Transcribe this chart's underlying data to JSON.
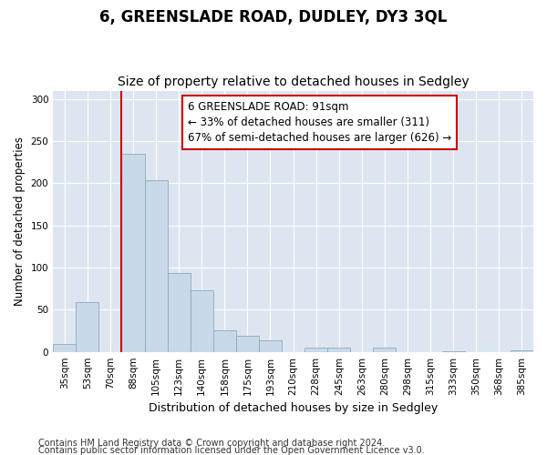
{
  "title": "6, GREENSLADE ROAD, DUDLEY, DY3 3QL",
  "subtitle": "Size of property relative to detached houses in Sedgley",
  "xlabel": "Distribution of detached houses by size in Sedgley",
  "ylabel": "Number of detached properties",
  "categories": [
    "35sqm",
    "53sqm",
    "70sqm",
    "88sqm",
    "105sqm",
    "123sqm",
    "140sqm",
    "158sqm",
    "175sqm",
    "193sqm",
    "210sqm",
    "228sqm",
    "245sqm",
    "263sqm",
    "280sqm",
    "298sqm",
    "315sqm",
    "333sqm",
    "350sqm",
    "368sqm",
    "385sqm"
  ],
  "values": [
    9,
    59,
    0,
    235,
    204,
    94,
    73,
    26,
    19,
    14,
    0,
    5,
    5,
    0,
    5,
    0,
    0,
    1,
    0,
    0,
    2
  ],
  "bar_color": "#c9d9ea",
  "bar_edge_color": "#8baabf",
  "red_line_index": 3,
  "line_color": "#cc0000",
  "annotation_text": "6 GREENSLADE ROAD: 91sqm\n← 33% of detached houses are smaller (311)\n67% of semi-detached houses are larger (626) →",
  "annotation_box_facecolor": "#ffffff",
  "annotation_box_edgecolor": "#cc0000",
  "ylim": [
    0,
    310
  ],
  "yticks": [
    0,
    50,
    100,
    150,
    200,
    250,
    300
  ],
  "plot_bg_color": "#dde6f0",
  "fig_bg_color": "#ffffff",
  "footer_line1": "Contains HM Land Registry data © Crown copyright and database right 2024.",
  "footer_line2": "Contains public sector information licensed under the Open Government Licence v3.0.",
  "title_fontsize": 12,
  "subtitle_fontsize": 10,
  "xlabel_fontsize": 9,
  "ylabel_fontsize": 8.5,
  "tick_fontsize": 7.5,
  "annotation_fontsize": 8.5,
  "footer_fontsize": 7
}
